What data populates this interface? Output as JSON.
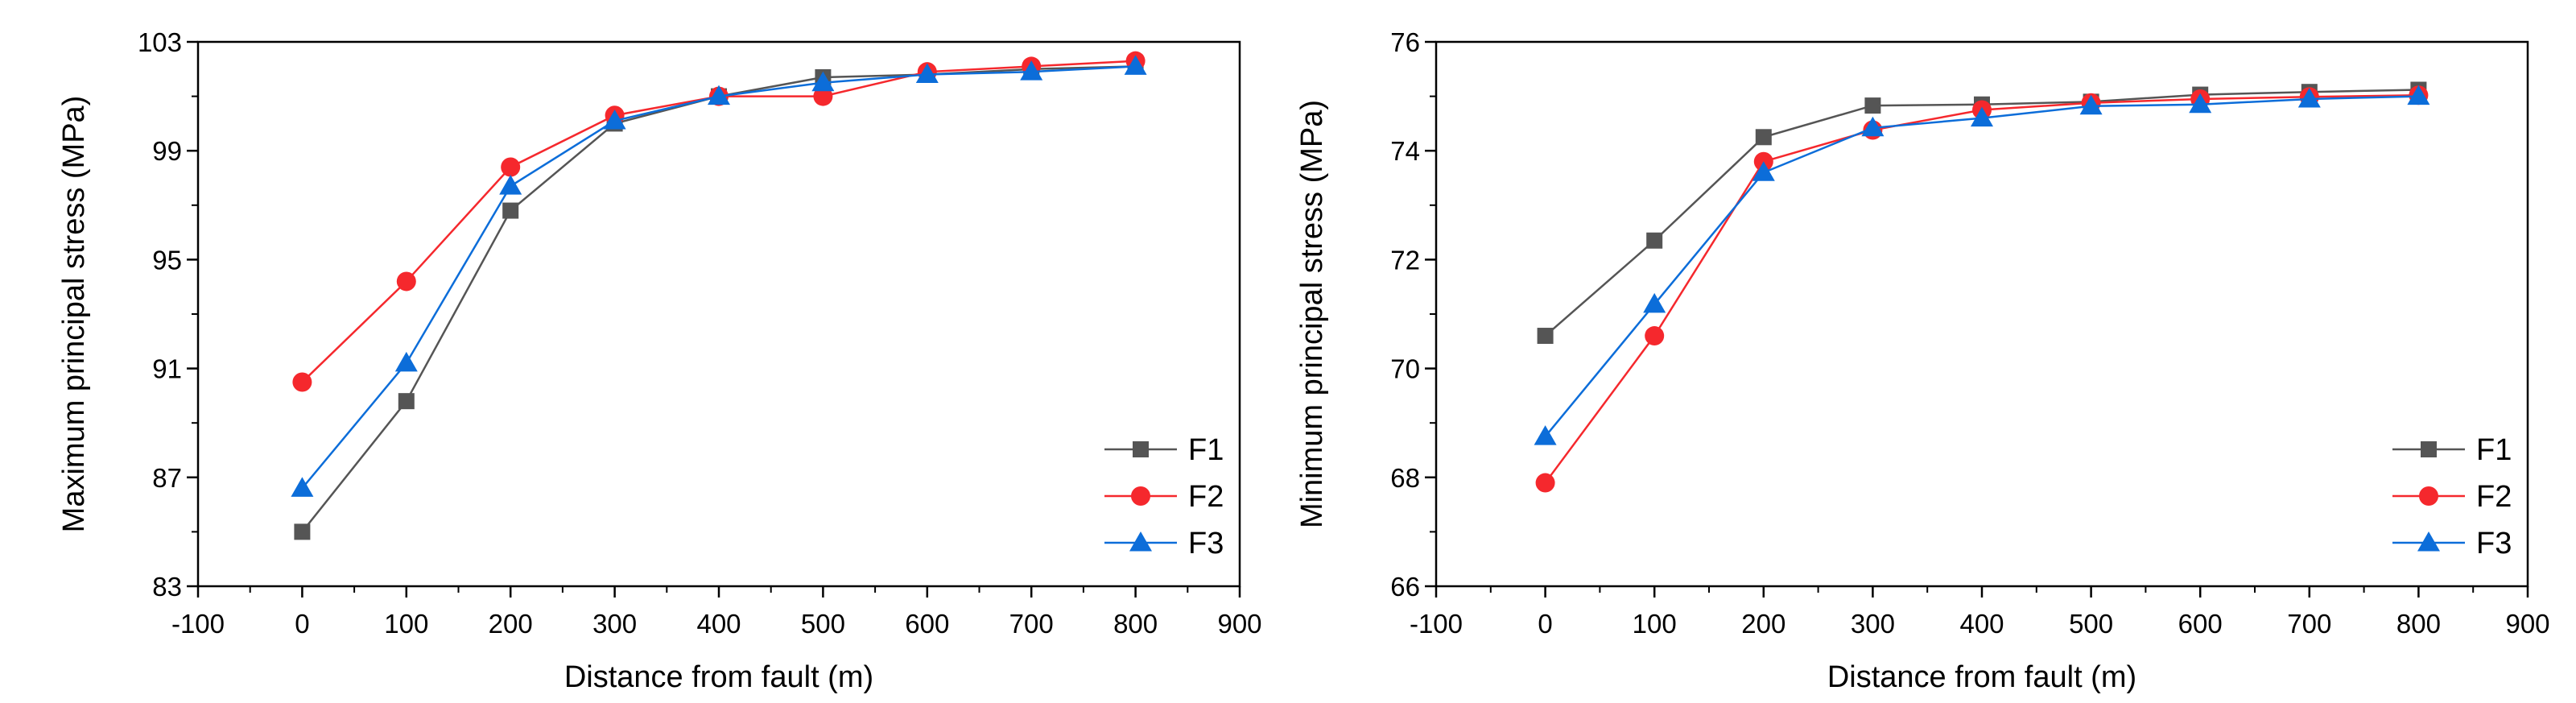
{
  "chart_data": [
    {
      "type": "line",
      "xlabel": "Distance from fault (m)",
      "ylabel": "Maximum principal stress (MPa)",
      "xlim": [
        -100,
        900
      ],
      "ylim": [
        83,
        103
      ],
      "xticks": [
        -100,
        0,
        100,
        200,
        300,
        400,
        500,
        600,
        700,
        800,
        900
      ],
      "yticks": [
        83,
        87,
        91,
        95,
        99,
        103
      ],
      "legend_position": "bottom-right",
      "x": [
        0,
        100,
        200,
        300,
        400,
        500,
        600,
        700,
        800
      ],
      "series": [
        {
          "name": "F1",
          "color": "#555555",
          "marker": "square",
          "values": [
            85.0,
            89.8,
            96.8,
            100.0,
            101.0,
            101.7,
            101.8,
            102.0,
            102.1
          ]
        },
        {
          "name": "F2",
          "color": "#f5282d",
          "marker": "circle",
          "values": [
            90.5,
            94.2,
            98.4,
            100.3,
            101.0,
            101.0,
            101.9,
            102.1,
            102.3
          ]
        },
        {
          "name": "F3",
          "color": "#0c6dd9",
          "marker": "triangle",
          "values": [
            86.6,
            91.2,
            97.7,
            100.1,
            101.0,
            101.5,
            101.8,
            101.9,
            102.1
          ]
        }
      ]
    },
    {
      "type": "line",
      "xlabel": "Distance from fault (m)",
      "ylabel": "Minimum principal stress (MPa)",
      "xlim": [
        -100,
        900
      ],
      "ylim": [
        66,
        76
      ],
      "xticks": [
        -100,
        0,
        100,
        200,
        300,
        400,
        500,
        600,
        700,
        800,
        900
      ],
      "yticks": [
        66,
        68,
        70,
        72,
        74,
        76
      ],
      "legend_position": "bottom-right",
      "x": [
        0,
        100,
        200,
        300,
        400,
        500,
        600,
        700,
        800
      ],
      "series": [
        {
          "name": "F1",
          "color": "#555555",
          "marker": "square",
          "values": [
            70.6,
            72.35,
            74.25,
            74.83,
            74.85,
            74.9,
            75.03,
            75.08,
            75.12
          ]
        },
        {
          "name": "F2",
          "color": "#f5282d",
          "marker": "circle",
          "values": [
            67.9,
            70.6,
            73.8,
            74.38,
            74.75,
            74.88,
            74.95,
            74.99,
            75.02
          ]
        },
        {
          "name": "F3",
          "color": "#0c6dd9",
          "marker": "triangle",
          "values": [
            68.75,
            71.18,
            73.6,
            74.42,
            74.6,
            74.82,
            74.85,
            74.95,
            75.0
          ]
        }
      ]
    }
  ]
}
